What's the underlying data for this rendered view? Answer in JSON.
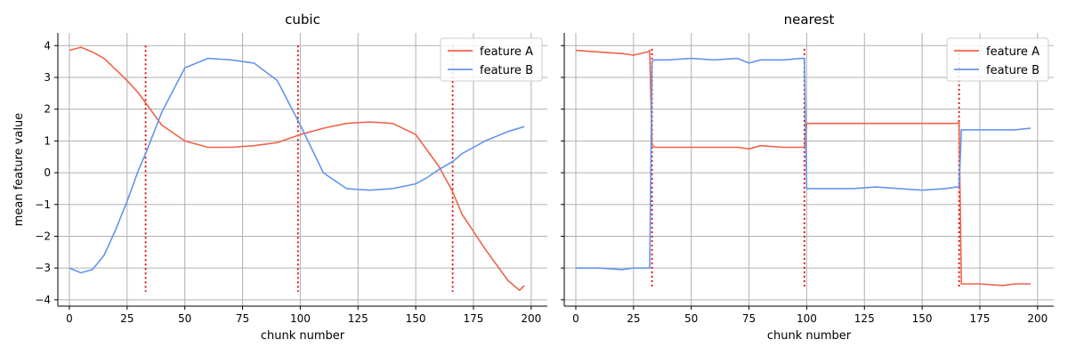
{
  "chart_data": [
    {
      "type": "line",
      "title": "cubic",
      "xlabel": "chunk number",
      "ylabel": "mean feature value",
      "xlim": [
        -5,
        207
      ],
      "ylim": [
        -4.2,
        4.4
      ],
      "xticks": [
        0,
        25,
        50,
        75,
        100,
        125,
        150,
        175,
        200
      ],
      "yticks": [
        -4,
        -3,
        -2,
        -1,
        0,
        1,
        2,
        3,
        4
      ],
      "grid": true,
      "legend_position": "top-right",
      "changepoints": {
        "x": [
          33,
          99,
          166
        ],
        "y_range": [
          -3.75,
          4.0
        ],
        "color": "#dd0000",
        "style": "dotted"
      },
      "series": [
        {
          "name": "feature A",
          "color": "#f0634a",
          "x": [
            0,
            5,
            10,
            15,
            20,
            25,
            30,
            33,
            40,
            50,
            60,
            70,
            80,
            90,
            100,
            110,
            120,
            130,
            140,
            150,
            155,
            160,
            166,
            170,
            180,
            190,
            195,
            197
          ],
          "y": [
            3.85,
            3.95,
            3.8,
            3.6,
            3.25,
            2.9,
            2.5,
            2.2,
            1.5,
            1.0,
            0.8,
            0.8,
            0.85,
            0.95,
            1.2,
            1.4,
            1.55,
            1.6,
            1.55,
            1.2,
            0.7,
            0.2,
            -0.6,
            -1.3,
            -2.4,
            -3.4,
            -3.7,
            -3.55
          ]
        },
        {
          "name": "feature B",
          "color": "#6495ed",
          "x": [
            0,
            5,
            10,
            15,
            20,
            25,
            30,
            33,
            40,
            50,
            60,
            70,
            80,
            90,
            100,
            110,
            120,
            130,
            140,
            150,
            155,
            160,
            166,
            170,
            180,
            190,
            197
          ],
          "y": [
            -3.0,
            -3.15,
            -3.05,
            -2.6,
            -1.8,
            -0.9,
            0.1,
            0.6,
            1.9,
            3.3,
            3.6,
            3.55,
            3.45,
            2.9,
            1.5,
            0.0,
            -0.5,
            -0.55,
            -0.5,
            -0.35,
            -0.15,
            0.1,
            0.35,
            0.6,
            1.0,
            1.3,
            1.45
          ]
        }
      ]
    },
    {
      "type": "line",
      "title": "nearest",
      "xlabel": "chunk number",
      "ylabel": "",
      "xlim": [
        -5,
        207
      ],
      "ylim": [
        -4.2,
        4.4
      ],
      "xticks": [
        0,
        25,
        50,
        75,
        100,
        125,
        150,
        175,
        200
      ],
      "yticks": [
        -4,
        -3,
        -2,
        -1,
        0,
        1,
        2,
        3,
        4
      ],
      "grid": true,
      "legend_position": "top-right",
      "changepoints": {
        "x": [
          33,
          99,
          166
        ],
        "y_range": [
          -3.6,
          3.9
        ],
        "color": "#dd0000",
        "style": "dotted"
      },
      "series": [
        {
          "name": "feature A",
          "color": "#f0634a",
          "x": [
            0,
            10,
            20,
            25,
            31,
            32,
            33,
            34,
            40,
            50,
            60,
            70,
            75,
            80,
            90,
            98,
            99,
            100,
            110,
            120,
            130,
            140,
            150,
            160,
            165,
            166,
            167,
            175,
            185,
            190,
            197
          ],
          "y": [
            3.85,
            3.8,
            3.75,
            3.7,
            3.8,
            3.85,
            0.9,
            0.8,
            0.8,
            0.8,
            0.8,
            0.8,
            0.75,
            0.85,
            0.8,
            0.8,
            0.8,
            1.55,
            1.55,
            1.55,
            1.55,
            1.55,
            1.55,
            1.55,
            1.55,
            1.6,
            -3.5,
            -3.5,
            -3.55,
            -3.5,
            -3.5
          ]
        },
        {
          "name": "feature B",
          "color": "#6495ed",
          "x": [
            0,
            10,
            20,
            25,
            31,
            32,
            33,
            34,
            40,
            50,
            60,
            70,
            75,
            80,
            90,
            98,
            99,
            100,
            110,
            120,
            130,
            140,
            150,
            160,
            165,
            166,
            167,
            175,
            185,
            190,
            197
          ],
          "y": [
            -3.0,
            -3.0,
            -3.05,
            -3.0,
            -3.0,
            -3.0,
            3.5,
            3.55,
            3.55,
            3.6,
            3.55,
            3.6,
            3.45,
            3.55,
            3.55,
            3.6,
            3.6,
            -0.5,
            -0.5,
            -0.5,
            -0.45,
            -0.5,
            -0.55,
            -0.5,
            -0.45,
            -0.45,
            1.35,
            1.35,
            1.35,
            1.35,
            1.4
          ]
        }
      ]
    }
  ]
}
